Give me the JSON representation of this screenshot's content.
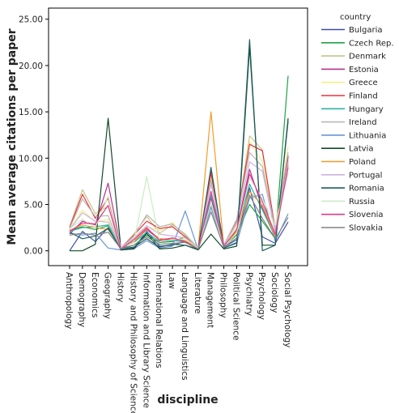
{
  "chart_data": {
    "type": "line",
    "xlabel": "discipline",
    "ylabel": "Mean average citations per paper",
    "ylim": [
      -1.6,
      26.2
    ],
    "yticks": [
      0,
      5,
      10,
      15,
      20,
      25
    ],
    "ytick_labels": [
      "0.00",
      "5.00",
      "10.00",
      "15.00",
      "20.00",
      "25.00"
    ],
    "grid": false,
    "legend_position": "right",
    "legend_title": "country",
    "categories": [
      "Anthropology",
      "Demography",
      "Economics",
      "Geography",
      "History",
      "History and Philosophy of Science",
      "Information and Library Science",
      "International Relations",
      "Law",
      "Language and Linguistics",
      "Literature",
      "Management",
      "Philosophy",
      "Political Science",
      "Psychiatry",
      "Psychology",
      "Sociology",
      "Social Psychology"
    ],
    "series": [
      {
        "name": "Bulgaria",
        "color": "#3b4fa8",
        "values": [
          0.0,
          2.1,
          1.0,
          2.5,
          0.1,
          0.3,
          2.1,
          0.5,
          0.6,
          1.0,
          0.2,
          8.5,
          0.4,
          1.2,
          6.8,
          1.5,
          0.8,
          3.1
        ]
      },
      {
        "name": "Czech Rep.",
        "color": "#1fa346",
        "values": [
          2.2,
          2.6,
          2.3,
          2.7,
          0.3,
          0.6,
          1.7,
          0.9,
          1.0,
          1.5,
          0.3,
          4.8,
          0.5,
          1.7,
          5.0,
          3.2,
          1.3,
          18.9
        ]
      },
      {
        "name": "Denmark",
        "color": "#c9c38a",
        "values": [
          2.6,
          6.6,
          4.0,
          4.8,
          0.3,
          1.8,
          3.7,
          1.9,
          2.8,
          1.8,
          0.3,
          7.4,
          0.6,
          3.1,
          12.4,
          10.9,
          2.1,
          9.8
        ]
      },
      {
        "name": "Estonia",
        "color": "#b5338e",
        "values": [
          1.8,
          3.2,
          2.8,
          7.3,
          0.2,
          1.0,
          2.3,
          1.2,
          1.2,
          0.9,
          0.2,
          5.7,
          0.4,
          2.3,
          8.8,
          4.6,
          1.6,
          10.1
        ]
      },
      {
        "name": "Greece",
        "color": "#f2ef8a",
        "values": [
          2.3,
          4.4,
          3.1,
          3.4,
          0.2,
          1.3,
          2.6,
          2.2,
          3.1,
          1.3,
          0.3,
          7.9,
          0.6,
          2.6,
          11.8,
          9.6,
          2.5,
          11.2
        ]
      },
      {
        "name": "Finland",
        "color": "#e8343a",
        "values": [
          2.5,
          6.1,
          3.5,
          5.7,
          0.3,
          1.7,
          3.2,
          2.4,
          2.6,
          1.5,
          0.3,
          8.4,
          0.6,
          3.3,
          11.5,
          10.8,
          2.3,
          10.3
        ]
      },
      {
        "name": "Hungary",
        "color": "#2db5a3",
        "values": [
          2.1,
          2.5,
          2.6,
          2.8,
          0.3,
          0.9,
          2.0,
          1.0,
          1.1,
          1.0,
          0.3,
          6.0,
          0.5,
          1.9,
          7.2,
          4.4,
          1.5,
          9.4
        ]
      },
      {
        "name": "Ireland",
        "color": "#b8b8b8",
        "values": [
          2.4,
          5.6,
          3.7,
          3.8,
          0.3,
          1.6,
          3.9,
          2.6,
          2.9,
          1.7,
          0.3,
          7.6,
          0.6,
          3.4,
          10.6,
          9.1,
          2.3,
          10.6
        ]
      },
      {
        "name": "Lithuania",
        "color": "#6e96d4",
        "values": [
          1.9,
          1.7,
          1.9,
          0.3,
          0.1,
          0.2,
          1.1,
          0.3,
          0.5,
          4.3,
          0.1,
          4.7,
          0.3,
          0.8,
          5.7,
          6.1,
          1.0,
          4.0
        ]
      },
      {
        "name": "Latvia",
        "color": "#124a2a",
        "values": [
          0.0,
          0.0,
          0.7,
          14.3,
          0.1,
          0.2,
          1.9,
          0.2,
          0.3,
          0.6,
          0.1,
          1.8,
          0.2,
          0.5,
          22.0,
          0.6,
          0.6,
          14.3
        ]
      },
      {
        "name": "Poland",
        "color": "#f39a2a",
        "values": [
          2.2,
          2.8,
          2.5,
          2.3,
          0.3,
          1.0,
          2.4,
          1.3,
          1.3,
          1.1,
          0.3,
          15.0,
          0.5,
          2.1,
          6.4,
          4.9,
          1.6,
          9.2
        ]
      },
      {
        "name": "Portugal",
        "color": "#cbb3e0",
        "values": [
          2.3,
          4.1,
          3.2,
          3.1,
          0.3,
          1.4,
          2.7,
          1.8,
          1.6,
          1.4,
          0.3,
          7.2,
          0.6,
          2.9,
          9.6,
          8.6,
          2.0,
          9.6
        ]
      },
      {
        "name": "Romania",
        "color": "#1f5e5e",
        "values": [
          2.0,
          1.3,
          1.6,
          2.4,
          0.2,
          0.4,
          1.3,
          0.4,
          0.7,
          0.6,
          0.2,
          9.0,
          0.3,
          0.9,
          22.8,
          0.0,
          0.6,
          14.0
        ]
      },
      {
        "name": "Russia",
        "color": "#c9edc4",
        "values": [
          2.4,
          3.4,
          2.5,
          5.9,
          0.3,
          0.9,
          8.0,
          1.0,
          1.2,
          1.3,
          0.3,
          5.1,
          0.4,
          1.9,
          7.9,
          5.6,
          2.7,
          8.4
        ]
      },
      {
        "name": "Slovenia",
        "color": "#e23a8e",
        "values": [
          2.1,
          3.0,
          2.9,
          4.9,
          0.2,
          1.2,
          2.5,
          1.1,
          1.4,
          1.0,
          0.2,
          6.4,
          0.5,
          2.3,
          8.3,
          5.3,
          1.8,
          9.0
        ]
      },
      {
        "name": "Slovakia",
        "color": "#828282",
        "values": [
          1.7,
          1.9,
          1.7,
          2.0,
          0.2,
          0.6,
          1.5,
          0.7,
          0.8,
          0.9,
          0.2,
          4.2,
          0.4,
          1.4,
          6.0,
          3.5,
          1.3,
          3.6
        ]
      }
    ]
  }
}
